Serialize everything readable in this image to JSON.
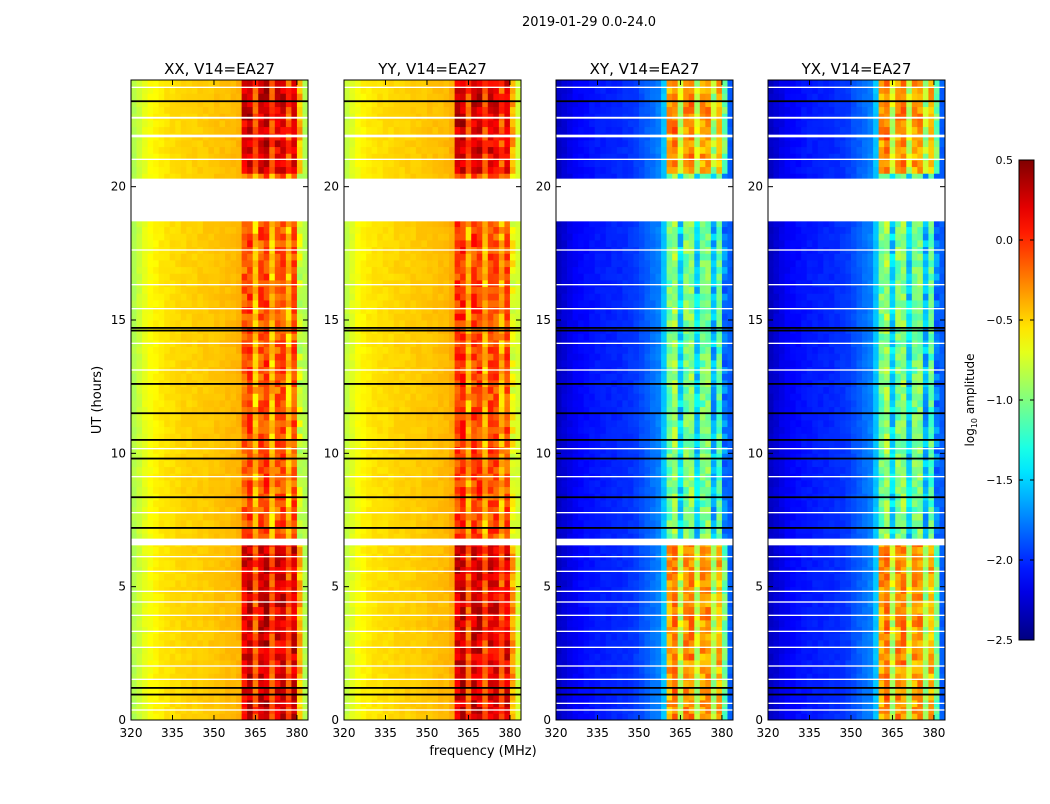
{
  "chart_data": {
    "type": "heatmap",
    "title": "2019-01-29 0.0-24.0",
    "xlabel": "frequency (MHz)",
    "ylabel": "UT (hours)",
    "xlim": [
      320,
      384
    ],
    "ylim": [
      0,
      24
    ],
    "xticks": [
      320,
      335,
      350,
      365,
      380
    ],
    "yticks": [
      0,
      5,
      10,
      15,
      20
    ],
    "freq_bin_mhz": 2,
    "time_bin_hours": 0.25,
    "colorbar": {
      "label_prefix": "log",
      "label_sub": "10",
      "label_suffix": " amplitude",
      "colormap": "jet",
      "range": [
        -2.5,
        0.5
      ],
      "ticks": [
        "0.5",
        "0.0",
        "−0.5",
        "−1.0",
        "−1.5",
        "−2.0",
        "−2.5"
      ],
      "tick_values": [
        0.5,
        0.0,
        -0.5,
        -1.0,
        -1.5,
        -2.0,
        -2.5
      ]
    },
    "flagged_hours": [
      [
        18.7,
        20.3
      ],
      [
        6.55,
        6.8
      ],
      [
        23.7,
        23.75
      ],
      [
        22.55,
        22.62
      ],
      [
        21.85,
        21.95
      ],
      [
        21.0,
        21.05
      ],
      [
        17.6,
        17.65
      ],
      [
        16.3,
        16.35
      ],
      [
        15.4,
        15.45
      ],
      [
        14.1,
        14.15
      ],
      [
        13.1,
        13.15
      ],
      [
        10.15,
        10.2
      ],
      [
        9.1,
        9.15
      ],
      [
        7.75,
        7.8
      ],
      [
        6.1,
        6.15
      ],
      [
        5.55,
        5.6
      ],
      [
        4.8,
        4.85
      ],
      [
        4.4,
        4.45
      ],
      [
        3.9,
        3.95
      ],
      [
        3.3,
        3.35
      ],
      [
        2.7,
        2.75
      ],
      [
        2.0,
        2.05
      ],
      [
        1.5,
        1.55
      ],
      [
        0.6,
        0.65
      ],
      [
        0.35,
        0.4
      ]
    ],
    "dark_lines_hours": [
      23.2,
      14.7,
      14.6,
      12.6,
      11.5,
      10.5,
      9.8,
      8.35,
      7.2,
      1.2,
      0.95
    ],
    "bright_periods_hours": [
      [
        0,
        6.55
      ],
      [
        20.3,
        24
      ]
    ],
    "panels": [
      {
        "name": "XX, V14=EA27",
        "freq_profile": [
          -0.85,
          -0.78,
          -0.7,
          -0.64,
          -0.6,
          -0.57,
          -0.55,
          -0.53,
          -0.52,
          -0.5,
          -0.5,
          -0.49,
          -0.48,
          -0.47,
          -0.46,
          -0.45,
          -0.44,
          -0.43,
          -0.42,
          -0.4,
          -0.15,
          -0.05,
          -0.45,
          -0.1,
          -0.05,
          -0.45,
          -0.15,
          -0.1,
          -0.45,
          -0.1,
          -0.75,
          -0.85
        ],
        "bright_boost": 0.35
      },
      {
        "name": "YY, V14=EA27",
        "freq_profile": [
          -0.8,
          -0.72,
          -0.65,
          -0.6,
          -0.57,
          -0.55,
          -0.54,
          -0.53,
          -0.52,
          -0.5,
          -0.5,
          -0.49,
          -0.48,
          -0.47,
          -0.46,
          -0.45,
          -0.44,
          -0.43,
          -0.42,
          -0.38,
          -0.05,
          0.0,
          -0.4,
          -0.05,
          -0.05,
          -0.4,
          -0.1,
          -0.1,
          -0.4,
          -0.1,
          -0.65,
          -0.75
        ],
        "bright_boost": 0.3
      },
      {
        "name": "XY, V14=EA27",
        "freq_profile": [
          -2.3,
          -2.25,
          -2.2,
          -2.15,
          -2.12,
          -2.1,
          -2.08,
          -2.06,
          -2.05,
          -2.04,
          -2.03,
          -2.02,
          -2.0,
          -1.98,
          -1.95,
          -1.9,
          -1.85,
          -1.8,
          -1.75,
          -1.55,
          -1.05,
          -0.9,
          -1.5,
          -1.0,
          -0.95,
          -1.5,
          -1.05,
          -1.0,
          -1.6,
          -1.1,
          -1.75,
          -1.85
        ],
        "bright_boost": 0.7
      },
      {
        "name": "YX, V14=EA27",
        "freq_profile": [
          -2.3,
          -2.25,
          -2.2,
          -2.15,
          -2.12,
          -2.1,
          -2.08,
          -2.06,
          -2.05,
          -2.04,
          -2.03,
          -2.02,
          -2.0,
          -1.98,
          -1.95,
          -1.9,
          -1.85,
          -1.8,
          -1.75,
          -1.55,
          -1.05,
          -0.9,
          -1.5,
          -1.0,
          -0.95,
          -1.5,
          -1.05,
          -1.0,
          -1.6,
          -1.1,
          -1.75,
          -1.85
        ],
        "bright_boost": 0.7
      }
    ]
  }
}
